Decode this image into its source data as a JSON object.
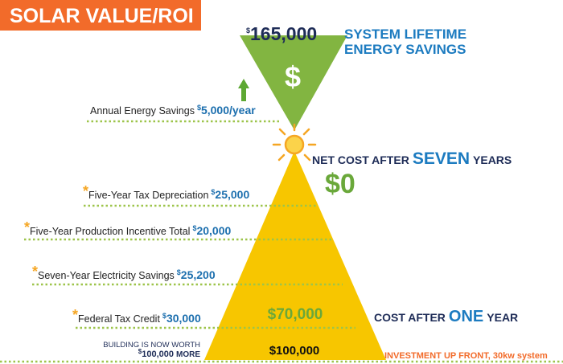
{
  "title": "SOLAR VALUE/ROI",
  "lifetime": {
    "currency": "$",
    "amount": "165,000",
    "label_lines": [
      "SYSTEM LIFETIME",
      "ENERGY SAVINGS"
    ]
  },
  "top_icon": "$",
  "annual": {
    "label": "Annual Energy Savings",
    "currency": "$",
    "amount": "5,000/year"
  },
  "net_cost": {
    "prefix": "NET COST AFTER",
    "emphasis": "SEVEN",
    "suffix": "YEARS",
    "value": "$0"
  },
  "items": [
    {
      "marker": "*",
      "label": "Five-Year Tax Depreciation",
      "currency": "$",
      "amount": "25,000"
    },
    {
      "marker": "*",
      "label": "Five-Year Production Incentive Total",
      "currency": "$",
      "amount": "20,000"
    },
    {
      "marker": "*",
      "label": "Seven-Year Electricity Savings",
      "currency": "$",
      "amount": "25,200"
    },
    {
      "marker": "*",
      "label": "Federal Tax Credit",
      "currency": "$",
      "amount": "30,000"
    }
  ],
  "one_year": {
    "value": "$70,000",
    "prefix": "COST AFTER",
    "emphasis": "ONE",
    "suffix": "YEAR"
  },
  "building": {
    "line1": "BUILDING IS NOW WORTH",
    "currency": "$",
    "amount": "100,000",
    "suffix": "MORE"
  },
  "investment": {
    "value": "$100,000",
    "label": "INVESTMENT UP FRONT, 30kw system"
  }
}
